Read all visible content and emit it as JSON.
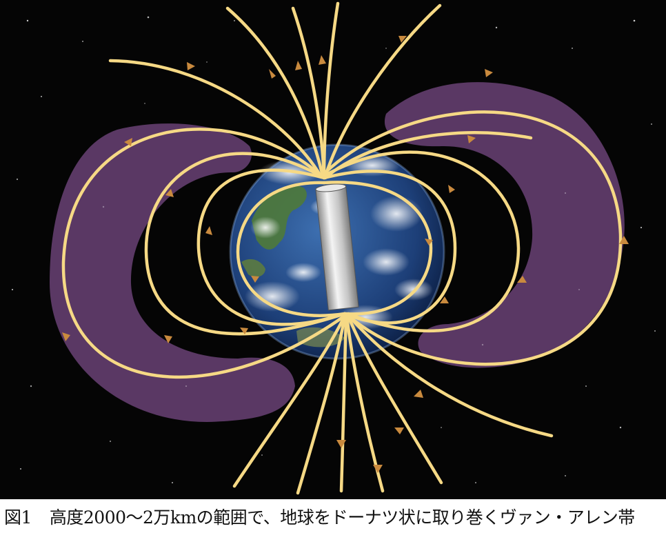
{
  "figure": {
    "label": "図1",
    "caption": "高度2000〜2万kmの範囲で、地球をドーナツ状に取り巻くヴァン・アレン帯"
  },
  "colors": {
    "space_background": "#050505",
    "belt_fill": "#5a3864",
    "field_line": "#f6d985",
    "arrow": "#c98a3e",
    "ocean": "#1d3f78",
    "magnet": "#c8c8c8"
  },
  "icons": {
    "earth": "earth-globe-icon",
    "magnet": "bar-magnet-icon",
    "arrow": "field-direction-arrow-icon"
  }
}
